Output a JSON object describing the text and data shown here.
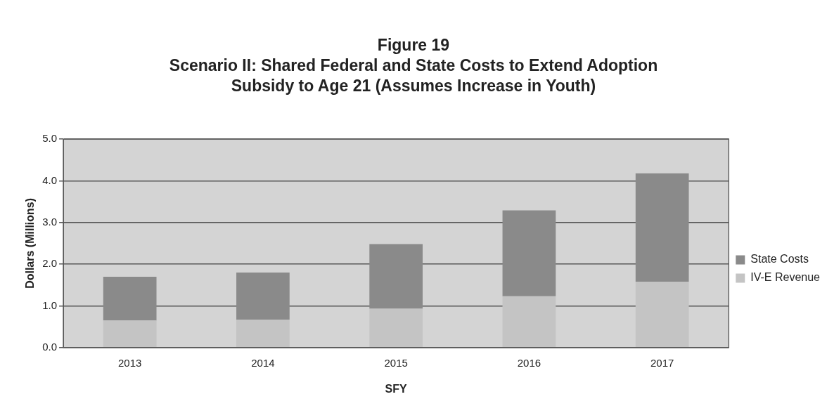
{
  "chart_data": {
    "type": "bar",
    "title": "Figure 19",
    "subtitle": "Scenario II: Shared Federal and State Costs to Extend Adoption Subsidy to Age 21 (Assumes Increase in Youth)",
    "xlabel": "SFY",
    "ylabel": "Dollars (Millions)",
    "categories": [
      "2013",
      "2014",
      "2015",
      "2016",
      "2017"
    ],
    "series": [
      {
        "name": "IV-E Revenue",
        "color": "#c4c4c4",
        "values": [
          0.65,
          0.67,
          0.93,
          1.23,
          1.58
        ]
      },
      {
        "name": "State Costs",
        "color": "#8a8a8a",
        "values": [
          1.05,
          1.13,
          1.55,
          2.06,
          2.6
        ]
      }
    ],
    "stacked": true,
    "ylim": [
      0,
      5
    ],
    "yticks": [
      {
        "value": 0,
        "label": "0.0"
      },
      {
        "value": 1,
        "label": "1.0"
      },
      {
        "value": 2,
        "label": "2.0"
      },
      {
        "value": 3,
        "label": "3.0"
      },
      {
        "value": 4,
        "label": "4.0"
      },
      {
        "value": 5,
        "label": "5.0"
      }
    ],
    "grid": "y",
    "legend": "right"
  }
}
